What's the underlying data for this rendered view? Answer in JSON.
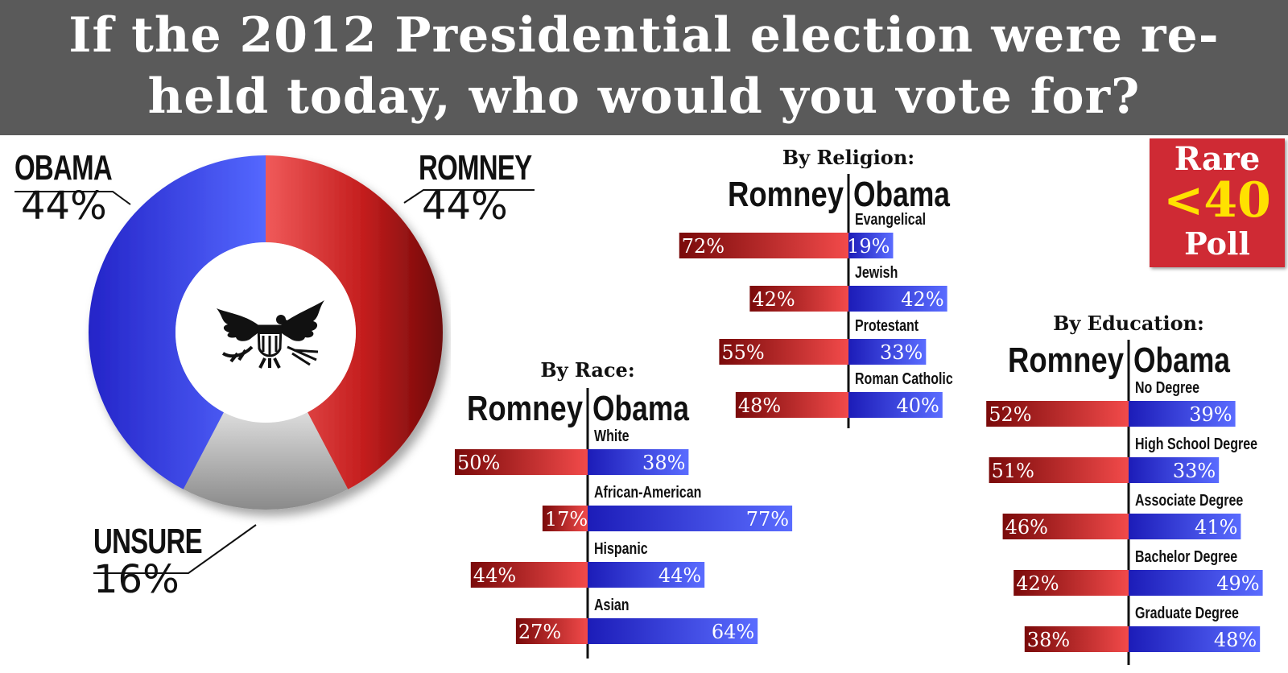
{
  "title": "If the 2012 Presidential election were re-held today, who would you vote for?",
  "badge": {
    "line1": "Rare",
    "line2": "<40",
    "line3": "Poll"
  },
  "colors": {
    "romney": "#d42a2a",
    "obama": "#2a3bd8",
    "unsure": "#a6a6a6",
    "title_bg": "#5a5a5a",
    "badge_bg": "#cf2a34",
    "badge_accent": "#ffe100"
  },
  "chart_data": [
    {
      "type": "pie",
      "labels": [
        "ROMNEY",
        "UNSURE",
        "OBAMA"
      ],
      "values": [
        44,
        16,
        44
      ],
      "value_labels": [
        "44%",
        "16%",
        "44%"
      ],
      "center_icon": "eagle-seal-icon"
    },
    {
      "type": "bar",
      "title": "By Religion:",
      "left_header": "Romney",
      "right_header": "Obama",
      "categories": [
        "Evangelical",
        "Jewish",
        "Protestant",
        "Roman Catholic"
      ],
      "series": [
        {
          "name": "Romney",
          "values": [
            72,
            42,
            55,
            48
          ]
        },
        {
          "name": "Obama",
          "values": [
            19,
            42,
            33,
            40
          ]
        }
      ]
    },
    {
      "type": "bar",
      "title": "By Race:",
      "left_header": "Romney",
      "right_header": "Obama",
      "categories": [
        "White",
        "African-American",
        "Hispanic",
        "Asian"
      ],
      "series": [
        {
          "name": "Romney",
          "values": [
            50,
            17,
            44,
            27
          ]
        },
        {
          "name": "Obama",
          "values": [
            38,
            77,
            44,
            64
          ]
        }
      ]
    },
    {
      "type": "bar",
      "title": "By Education:",
      "left_header": "Romney",
      "right_header": "Obama",
      "categories": [
        "No Degree",
        "High School Degree",
        "Associate Degree",
        "Bachelor Degree",
        "Graduate Degree"
      ],
      "series": [
        {
          "name": "Romney",
          "values": [
            52,
            51,
            46,
            42,
            38
          ]
        },
        {
          "name": "Obama",
          "values": [
            39,
            33,
            41,
            49,
            48
          ]
        }
      ]
    }
  ]
}
